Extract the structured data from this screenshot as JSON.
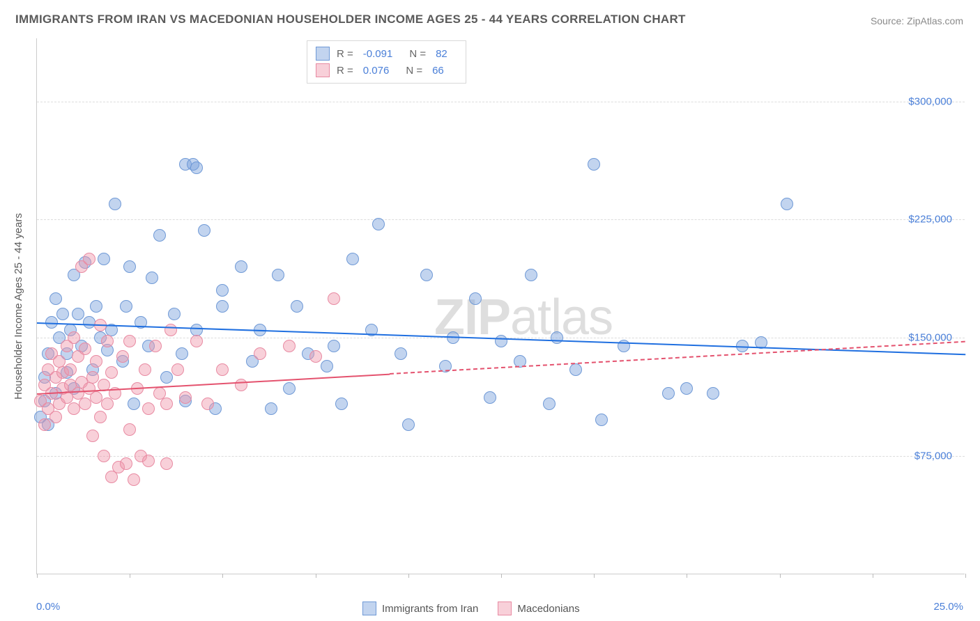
{
  "title": "IMMIGRANTS FROM IRAN VS MACEDONIAN HOUSEHOLDER INCOME AGES 25 - 44 YEARS CORRELATION CHART",
  "source": "Source: ZipAtlas.com",
  "watermark_bold": "ZIP",
  "watermark_rest": "atlas",
  "chart": {
    "type": "scatter",
    "xlim": [
      0,
      25
    ],
    "ylim": [
      0,
      340000
    ],
    "x_unit_suffix": "%",
    "y_prefix": "$",
    "y_ticks": [
      75000,
      150000,
      225000,
      300000
    ],
    "y_tick_labels": [
      "$75,000",
      "$150,000",
      "$225,000",
      "$300,000"
    ],
    "x_ticks_pct": [
      0,
      2.5,
      5,
      7.5,
      10,
      12.5,
      15,
      17.5,
      20,
      22.5,
      25
    ],
    "x_min_label": "0.0%",
    "x_max_label": "25.0%",
    "y_axis_label": "Householder Income Ages 25 - 44 years",
    "grid_color": "#dcdcdc",
    "background": "#ffffff",
    "axis_color": "#cccccc",
    "point_radius": 9,
    "point_radius_alt": 11,
    "series": [
      {
        "key": "iran",
        "label": "Immigrants from Iran",
        "fill": "rgba(120,160,220,0.45)",
        "stroke": "#6f99d6",
        "trend_color": "#1f6fe0",
        "trend_dash_color": "#1f6fe0",
        "R": "-0.091",
        "N": "82",
        "trend": {
          "x1": 0,
          "y1": 160000,
          "x2": 25,
          "y2": 140000,
          "solid_until_x": 25
        },
        "points": [
          [
            0.1,
            100000
          ],
          [
            0.2,
            110000
          ],
          [
            0.2,
            125000
          ],
          [
            0.3,
            140000
          ],
          [
            0.3,
            95000
          ],
          [
            0.4,
            160000
          ],
          [
            0.5,
            175000
          ],
          [
            0.5,
            115000
          ],
          [
            0.6,
            150000
          ],
          [
            0.7,
            165000
          ],
          [
            0.8,
            140000
          ],
          [
            0.8,
            128000
          ],
          [
            0.9,
            155000
          ],
          [
            1.0,
            190000
          ],
          [
            1.0,
            118000
          ],
          [
            1.1,
            165000
          ],
          [
            1.2,
            145000
          ],
          [
            1.3,
            198000
          ],
          [
            1.4,
            160000
          ],
          [
            1.5,
            130000
          ],
          [
            1.6,
            170000
          ],
          [
            1.7,
            150000
          ],
          [
            1.8,
            200000
          ],
          [
            1.9,
            142000
          ],
          [
            2.0,
            155000
          ],
          [
            2.1,
            235000
          ],
          [
            2.3,
            135000
          ],
          [
            2.4,
            170000
          ],
          [
            2.5,
            195000
          ],
          [
            2.6,
            108000
          ],
          [
            2.8,
            160000
          ],
          [
            3.0,
            145000
          ],
          [
            3.1,
            188000
          ],
          [
            3.3,
            215000
          ],
          [
            3.5,
            125000
          ],
          [
            3.7,
            165000
          ],
          [
            3.9,
            140000
          ],
          [
            4.0,
            260000
          ],
          [
            4.2,
            260000
          ],
          [
            4.3,
            258000
          ],
          [
            4.3,
            155000
          ],
          [
            4.5,
            218000
          ],
          [
            4.8,
            105000
          ],
          [
            5.0,
            180000
          ],
          [
            5.0,
            170000
          ],
          [
            5.5,
            195000
          ],
          [
            5.8,
            135000
          ],
          [
            6.0,
            155000
          ],
          [
            6.5,
            190000
          ],
          [
            6.8,
            118000
          ],
          [
            7.0,
            170000
          ],
          [
            7.3,
            140000
          ],
          [
            7.8,
            132000
          ],
          [
            8.0,
            145000
          ],
          [
            8.2,
            108000
          ],
          [
            8.5,
            200000
          ],
          [
            9.0,
            155000
          ],
          [
            9.2,
            222000
          ],
          [
            9.8,
            140000
          ],
          [
            10.0,
            95000
          ],
          [
            10.5,
            190000
          ],
          [
            11.0,
            132000
          ],
          [
            11.2,
            150000
          ],
          [
            11.8,
            175000
          ],
          [
            12.2,
            112000
          ],
          [
            12.5,
            148000
          ],
          [
            13.0,
            135000
          ],
          [
            13.3,
            190000
          ],
          [
            13.8,
            108000
          ],
          [
            14.0,
            150000
          ],
          [
            14.5,
            130000
          ],
          [
            15.0,
            260000
          ],
          [
            15.2,
            98000
          ],
          [
            15.8,
            145000
          ],
          [
            17.0,
            115000
          ],
          [
            17.5,
            118000
          ],
          [
            18.2,
            115000
          ],
          [
            19.0,
            145000
          ],
          [
            19.5,
            147000
          ],
          [
            20.2,
            235000
          ],
          [
            4.0,
            110000
          ],
          [
            6.3,
            105000
          ]
        ]
      },
      {
        "key": "mac",
        "label": "Macedonians",
        "fill": "rgba(240,150,170,0.45)",
        "stroke": "#e88aa2",
        "trend_color": "#e4526e",
        "trend_dash_color": "#e4526e",
        "R": "0.076",
        "N": "66",
        "trend": {
          "x1": 0,
          "y1": 115000,
          "x2": 25,
          "y2": 148000,
          "solid_until_x": 9.5
        },
        "points": [
          [
            0.1,
            110000
          ],
          [
            0.2,
            95000
          ],
          [
            0.2,
            120000
          ],
          [
            0.3,
            130000
          ],
          [
            0.3,
            105000
          ],
          [
            0.4,
            115000
          ],
          [
            0.4,
            140000
          ],
          [
            0.5,
            100000
          ],
          [
            0.5,
            125000
          ],
          [
            0.6,
            108000
          ],
          [
            0.6,
            135000
          ],
          [
            0.7,
            118000
          ],
          [
            0.7,
            128000
          ],
          [
            0.8,
            112000
          ],
          [
            0.8,
            145000
          ],
          [
            0.9,
            120000
          ],
          [
            0.9,
            130000
          ],
          [
            1.0,
            105000
          ],
          [
            1.0,
            150000
          ],
          [
            1.1,
            115000
          ],
          [
            1.1,
            138000
          ],
          [
            1.2,
            122000
          ],
          [
            1.2,
            195000
          ],
          [
            1.3,
            108000
          ],
          [
            1.3,
            143000
          ],
          [
            1.4,
            118000
          ],
          [
            1.4,
            200000
          ],
          [
            1.5,
            125000
          ],
          [
            1.5,
            88000
          ],
          [
            1.6,
            112000
          ],
          [
            1.6,
            135000
          ],
          [
            1.7,
            100000
          ],
          [
            1.7,
            158000
          ],
          [
            1.8,
            120000
          ],
          [
            1.8,
            75000
          ],
          [
            1.9,
            108000
          ],
          [
            1.9,
            148000
          ],
          [
            2.0,
            62000
          ],
          [
            2.0,
            128000
          ],
          [
            2.1,
            115000
          ],
          [
            2.2,
            68000
          ],
          [
            2.3,
            138000
          ],
          [
            2.4,
            70000
          ],
          [
            2.5,
            148000
          ],
          [
            2.5,
            92000
          ],
          [
            2.6,
            60000
          ],
          [
            2.7,
            118000
          ],
          [
            2.8,
            75000
          ],
          [
            2.9,
            130000
          ],
          [
            3.0,
            105000
          ],
          [
            3.0,
            72000
          ],
          [
            3.2,
            145000
          ],
          [
            3.3,
            115000
          ],
          [
            3.5,
            70000
          ],
          [
            3.6,
            155000
          ],
          [
            3.8,
            130000
          ],
          [
            4.0,
            112000
          ],
          [
            4.3,
            148000
          ],
          [
            4.6,
            108000
          ],
          [
            5.0,
            130000
          ],
          [
            5.5,
            120000
          ],
          [
            6.0,
            140000
          ],
          [
            6.8,
            145000
          ],
          [
            7.5,
            138000
          ],
          [
            8.0,
            175000
          ],
          [
            3.5,
            108000
          ]
        ]
      }
    ],
    "legend_top": {
      "R_label": "R =",
      "N_label": "N ="
    }
  }
}
